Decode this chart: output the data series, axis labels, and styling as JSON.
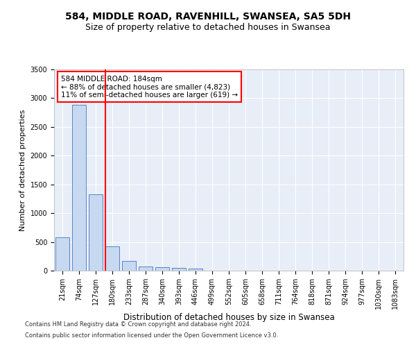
{
  "title1": "584, MIDDLE ROAD, RAVENHILL, SWANSEA, SA5 5DH",
  "title2": "Size of property relative to detached houses in Swansea",
  "xlabel": "Distribution of detached houses by size in Swansea",
  "ylabel": "Number of detached properties",
  "categories": [
    "21sqm",
    "74sqm",
    "127sqm",
    "180sqm",
    "233sqm",
    "287sqm",
    "340sqm",
    "393sqm",
    "446sqm",
    "499sqm",
    "552sqm",
    "605sqm",
    "658sqm",
    "711sqm",
    "764sqm",
    "818sqm",
    "871sqm",
    "924sqm",
    "977sqm",
    "1030sqm",
    "1083sqm"
  ],
  "values": [
    575,
    2890,
    1325,
    420,
    170,
    75,
    55,
    48,
    35,
    0,
    0,
    0,
    0,
    0,
    0,
    0,
    0,
    0,
    0,
    0,
    0
  ],
  "bar_color": "#c6d9f0",
  "bar_edge_color": "#4472c4",
  "annotation_text": "584 MIDDLE ROAD: 184sqm\n← 88% of detached houses are smaller (4,823)\n11% of semi-detached houses are larger (619) →",
  "annotation_box_color": "white",
  "annotation_box_edge_color": "red",
  "red_line_color": "red",
  "ylim": [
    0,
    3500
  ],
  "yticks": [
    0,
    500,
    1000,
    1500,
    2000,
    2500,
    3000,
    3500
  ],
  "footer1": "Contains HM Land Registry data © Crown copyright and database right 2024.",
  "footer2": "Contains public sector information licensed under the Open Government Licence v3.0.",
  "bg_color": "#e8eef7",
  "grid_color": "white",
  "title1_fontsize": 10,
  "title2_fontsize": 9,
  "tick_fontsize": 7,
  "ylabel_fontsize": 8,
  "xlabel_fontsize": 8.5,
  "footer_fontsize": 6,
  "annot_fontsize": 7.5
}
